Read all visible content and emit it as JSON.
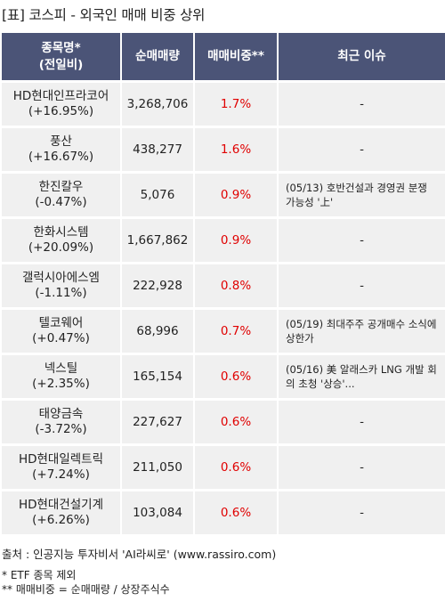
{
  "title": "[표] 코스피 - 외국인 매매 비중 상위",
  "headers": {
    "name_line1": "종목명*",
    "name_line2": "(전일비)",
    "net_volume": "순매매량",
    "ratio": "매매비중**",
    "issue": "최근 이슈"
  },
  "rows": [
    {
      "name": "HD현대인프라코어",
      "change": "(+16.95%)",
      "volume": "3,268,706",
      "ratio": "1.7%",
      "issue": "-"
    },
    {
      "name": "풍산",
      "change": "(+16.67%)",
      "volume": "438,277",
      "ratio": "1.6%",
      "issue": "-"
    },
    {
      "name": "한진칼우",
      "change": "(-0.47%)",
      "volume": "5,076",
      "ratio": "0.9%",
      "issue": "(05/13) 호반건설과 경영권 분쟁 가능성 '上'"
    },
    {
      "name": "한화시스템",
      "change": "(+20.09%)",
      "volume": "1,667,862",
      "ratio": "0.9%",
      "issue": "-"
    },
    {
      "name": "갤럭시아에스엠",
      "change": "(-1.11%)",
      "volume": "222,928",
      "ratio": "0.8%",
      "issue": "-"
    },
    {
      "name": "텔코웨어",
      "change": "(+0.47%)",
      "volume": "68,996",
      "ratio": "0.7%",
      "issue": "(05/19) 최대주주 공개매수 소식에 상한가"
    },
    {
      "name": "넥스틸",
      "change": "(+2.35%)",
      "volume": "165,154",
      "ratio": "0.6%",
      "issue": "(05/16) 美 알래스카 LNG 개발 회의 초청 '상승'..."
    },
    {
      "name": "태양금속",
      "change": "(-3.72%)",
      "volume": "227,627",
      "ratio": "0.6%",
      "issue": "-"
    },
    {
      "name": "HD현대일렉트릭",
      "change": "(+7.24%)",
      "volume": "211,050",
      "ratio": "0.6%",
      "issue": "-"
    },
    {
      "name": "HD현대건설기계",
      "change": "(+6.26%)",
      "volume": "103,084",
      "ratio": "0.6%",
      "issue": "-"
    }
  ],
  "footer": {
    "source": "출처 : 인공지능 투자비서 'AI라씨로' (www.rassiro.com)",
    "note1": "* ETF 종목 제외",
    "note2": "** 매매비중 = 순매매량 / 상장주식수"
  },
  "colors": {
    "header_bg": "#4b5477",
    "row_bg": "#f0f0f0",
    "ratio_text": "#e00000"
  }
}
